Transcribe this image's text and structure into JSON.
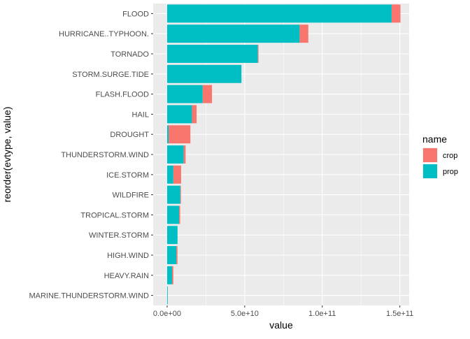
{
  "chart_data": {
    "type": "bar",
    "orientation": "horizontal",
    "stacked": true,
    "xlabel": "value",
    "ylabel": "reorder(evtype, value)",
    "xlim": [
      -9000000000,
      156000000000
    ],
    "x_ticks": [
      0,
      50000000000,
      100000000000,
      150000000000
    ],
    "x_tick_labels": [
      "0.0e+00",
      "5.0e+10",
      "1.0e+11",
      "1.5e+11"
    ],
    "grid": true,
    "legend_position": "right",
    "legend_title": "name",
    "categories": [
      "FLOOD",
      "HURRICANE..TYPHOON.",
      "TORNADO",
      "STORM.SURGE.TIDE",
      "FLASH.FLOOD",
      "HAIL",
      "DROUGHT",
      "THUNDERSTORM.WIND",
      "ICE.STORM",
      "WILDFIRE",
      "TROPICAL.STORM",
      "WINTER.STORM",
      "HIGH.WIND",
      "HEAVY.RAIN",
      "MARINE.THUNDERSTORM.WIND"
    ],
    "series": [
      {
        "name": "prop",
        "color": "#00BFC4",
        "values": [
          144700000000,
          85400000000,
          58500000000,
          47900000000,
          22900000000,
          16000000000,
          1000000000,
          10700000000,
          4000000000,
          8500000000,
          7700000000,
          6700000000,
          6000000000,
          3200000000,
          400000000
        ]
      },
      {
        "name": "crop",
        "color": "#F8766D",
        "values": [
          5700000000,
          5600000000,
          400000000,
          0,
          6000000000,
          3000000000,
          14000000000,
          1200000000,
          5000000000,
          400000000,
          700000000,
          0,
          700000000,
          800000000,
          0
        ]
      }
    ]
  },
  "colors": {
    "panel": "#EBEBEB",
    "grid_major": "#FFFFFF",
    "text": "#4D4D4D",
    "title_text": "#000000"
  }
}
